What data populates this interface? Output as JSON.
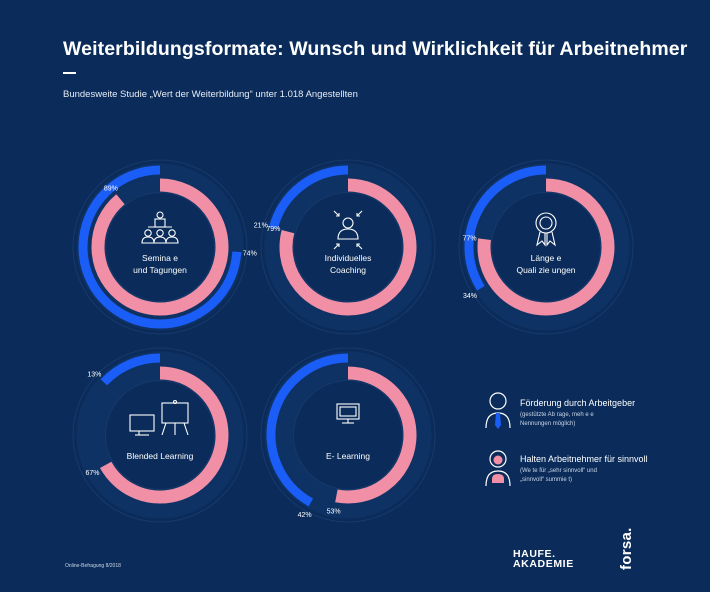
{
  "title": "Weiterbildungsformate: Wunsch und Wirklichkeit für Arbeitnehmer",
  "subtitle": "Bundesweite Studie „Wert der Weiterbildung“ unter 1.018 Angestellten",
  "colors": {
    "background": "#0b2c5a",
    "employer": "#1b5ef7",
    "employee": "#f08fa5"
  },
  "legend": {
    "employer": {
      "label": "Förderung durch Arbeitgeber",
      "note": "(gestützte Ab rage, meh e e\nNennungen möglich)"
    },
    "employee": {
      "label": "Halten Arbeitnehmer für sinnvoll",
      "note": "(We te für „sehr sinnvoll“ und\n„sinnvoll“ summie t)"
    }
  },
  "footnote": "Online-Befragung 8/2018",
  "logos": {
    "haufe_line1": "HAUFE.",
    "haufe_line2": "AKADEMIE",
    "forsa": "forsa."
  },
  "chart_data": [
    {
      "type": "donut",
      "label_lines": [
        "Semina e",
        "und Tagungen"
      ],
      "icon": "seminar-icon",
      "series": [
        {
          "name": "Förderung durch Arbeitgeber",
          "value": 74,
          "label": "74%"
        },
        {
          "name": "Halten Arbeitnehmer für sinnvoll",
          "value": 89,
          "label": "89%"
        }
      ]
    },
    {
      "type": "donut",
      "label_lines": [
        "Individuelles",
        "Coaching"
      ],
      "icon": "coaching-icon",
      "series": [
        {
          "name": "Förderung durch Arbeitgeber",
          "value": 21,
          "label": "21%"
        },
        {
          "name": "Halten Arbeitnehmer für sinnvoll",
          "value": 79,
          "label": "79%"
        }
      ]
    },
    {
      "type": "donut",
      "label_lines": [
        "Länge e",
        "Quali  zie ungen"
      ],
      "icon": "award-icon",
      "series": [
        {
          "name": "Förderung durch Arbeitgeber",
          "value": 34,
          "label": "34%"
        },
        {
          "name": "Halten Arbeitnehmer für sinnvoll",
          "value": 77,
          "label": "77%"
        }
      ]
    },
    {
      "type": "donut",
      "label_lines": [
        "Blended Learning"
      ],
      "icon": "blended-learning-icon",
      "series": [
        {
          "name": "Förderung durch Arbeitgeber",
          "value": 13,
          "label": "13%"
        },
        {
          "name": "Halten Arbeitnehmer für sinnvoll",
          "value": 67,
          "label": "67%"
        }
      ]
    },
    {
      "type": "donut",
      "label_lines": [
        "E- Learning"
      ],
      "icon": "monitor-icon",
      "series": [
        {
          "name": "Förderung durch Arbeitgeber",
          "value": 42,
          "label": "42%"
        },
        {
          "name": "Halten Arbeitnehmer für sinnvoll",
          "value": 53,
          "label": "53%"
        }
      ]
    }
  ]
}
